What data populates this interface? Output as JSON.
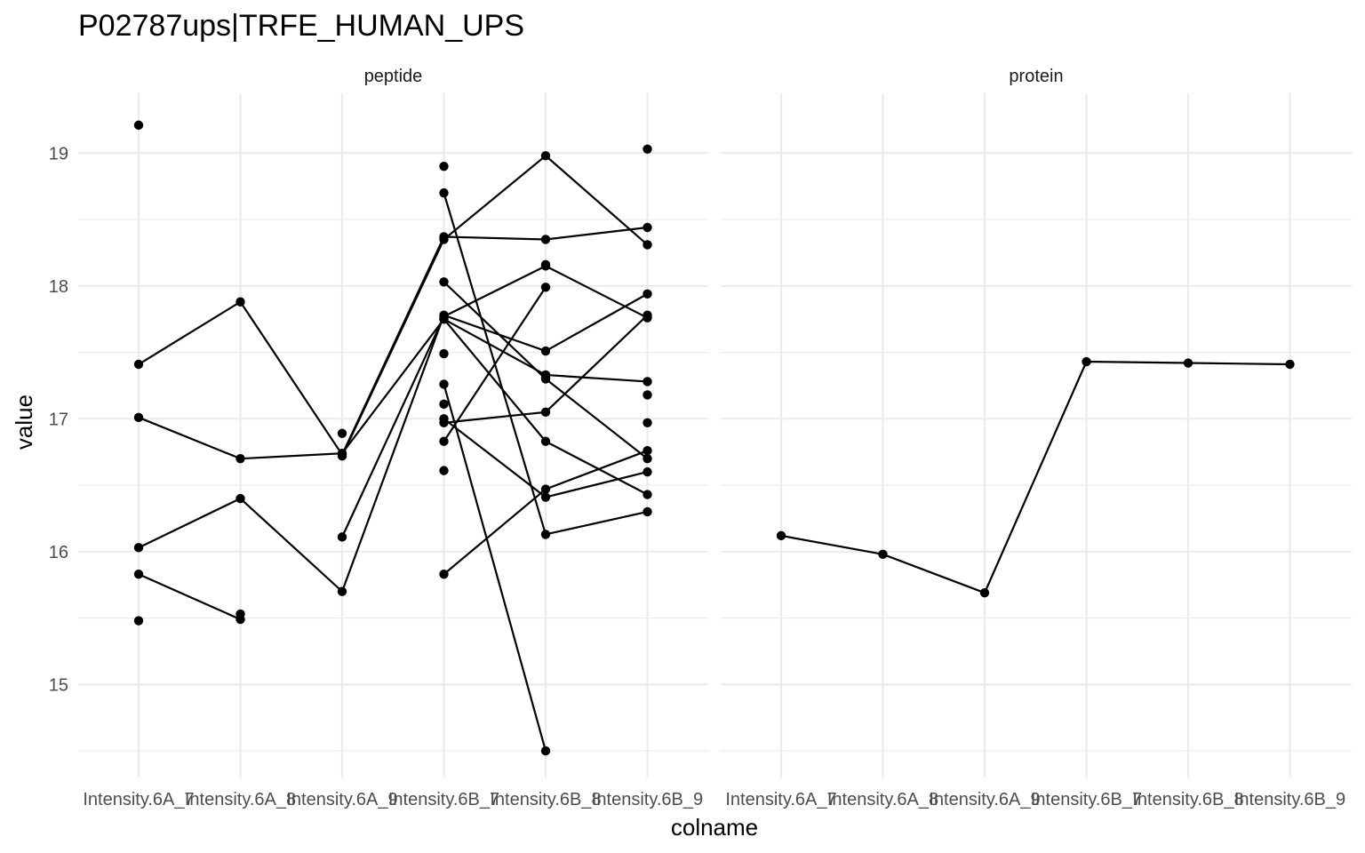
{
  "chart_data": {
    "type": "line",
    "title": "P02787ups|TRFE_HUMAN_UPS",
    "xlabel": "colname",
    "ylabel": "value",
    "ylim": [
      14.3,
      19.45
    ],
    "y_ticks": [
      15,
      16,
      17,
      18,
      19
    ],
    "categories": [
      "Intensity.6A_7",
      "Intensity.6A_8",
      "Intensity.6A_9",
      "Intensity.6B_7",
      "Intensity.6B_8",
      "Intensity.6B_9"
    ],
    "grid": true,
    "legend": "none",
    "panels": [
      {
        "name": "peptide",
        "series": [
          {
            "values": [
              17.41,
              17.88,
              16.73,
              18.37,
              18.35,
              18.44
            ]
          },
          {
            "values": [
              17.01,
              16.7,
              16.74,
              17.75,
              16.83,
              16.43
            ]
          },
          {
            "values": [
              16.03,
              16.4,
              15.7,
              17.78,
              17.51,
              17.94
            ]
          },
          {
            "values": [
              15.83,
              15.49,
              null,
              null,
              null,
              null
            ]
          },
          {
            "values": [
              null,
              null,
              16.72,
              18.35,
              18.98,
              18.31
            ]
          },
          {
            "values": [
              null,
              null,
              16.11,
              17.77,
              18.15,
              17.76
            ]
          },
          {
            "values": [
              null,
              null,
              null,
              18.7,
              16.13,
              16.3
            ]
          },
          {
            "values": [
              null,
              null,
              null,
              18.03,
              17.3,
              16.7
            ]
          },
          {
            "values": [
              null,
              null,
              null,
              17.26,
              14.5,
              null
            ]
          },
          {
            "values": [
              null,
              null,
              null,
              16.83,
              17.99,
              null
            ]
          },
          {
            "values": [
              null,
              null,
              null,
              16.97,
              17.05,
              17.78
            ]
          },
          {
            "values": [
              null,
              null,
              null,
              17.0,
              16.41,
              16.6
            ]
          },
          {
            "values": [
              null,
              null,
              null,
              17.75,
              17.33,
              17.28
            ]
          },
          {
            "values": [
              null,
              null,
              null,
              15.83,
              16.47,
              16.76
            ]
          }
        ],
        "extra_points": [
          {
            "x": "Intensity.6A_7",
            "y": 19.21
          },
          {
            "x": "Intensity.6A_7",
            "y": 15.48
          },
          {
            "x": "Intensity.6A_8",
            "y": 15.53
          },
          {
            "x": "Intensity.6A_9",
            "y": 16.89
          },
          {
            "x": "Intensity.6B_7",
            "y": 18.9
          },
          {
            "x": "Intensity.6B_7",
            "y": 17.49
          },
          {
            "x": "Intensity.6B_7",
            "y": 17.11
          },
          {
            "x": "Intensity.6B_7",
            "y": 16.61
          },
          {
            "x": "Intensity.6B_8",
            "y": 18.16
          },
          {
            "x": "Intensity.6B_8",
            "y": 17.31
          },
          {
            "x": "Intensity.6B_9",
            "y": 19.03
          },
          {
            "x": "Intensity.6B_9",
            "y": 17.18
          },
          {
            "x": "Intensity.6B_9",
            "y": 16.97
          }
        ]
      },
      {
        "name": "protein",
        "series": [
          {
            "values": [
              16.12,
              15.98,
              15.69,
              17.43,
              17.42,
              17.41
            ]
          }
        ],
        "extra_points": []
      }
    ]
  }
}
